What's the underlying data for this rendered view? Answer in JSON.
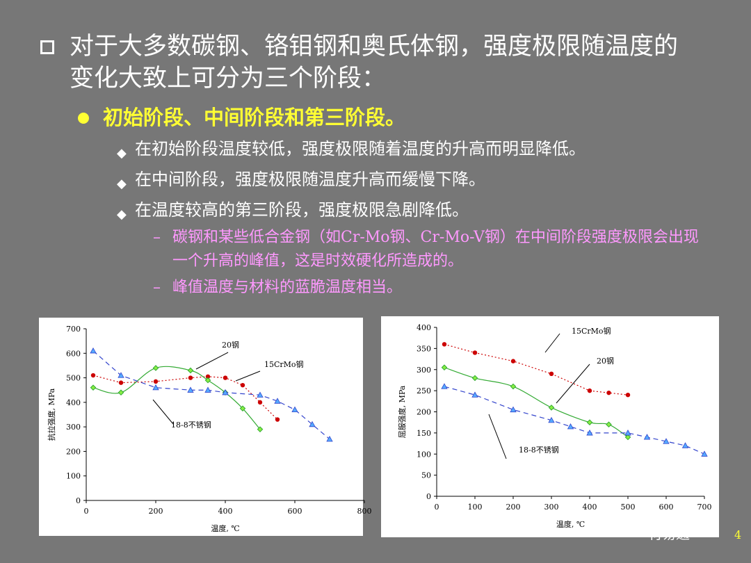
{
  "bullets": {
    "level1": "对于大多数碳钢、铬钼钢和奥氏体钢，强度极限随温度的变化大致上可分为三个阶段：",
    "level2": "初始阶段、中间阶段和第三阶段。",
    "level3": [
      "在初始阶段温度较低，强度极限随着温度的升高而明显降低。",
      "在中间阶段，强度极限随温度升高而缓慢下降。",
      "在温度较高的第三阶段，强度极限急剧降低。"
    ],
    "level4": [
      "碳钢和某些低合金钢（如Cr-Mo钢、Cr-Mo-V钢）在中间阶段强度极限会出现一个升高的峰值，这是时效硬化所造成的。",
      "峰值温度与材料的蓝脆温度相当。"
    ],
    "dash": "–"
  },
  "colors": {
    "c15CrMo": "#cc0000",
    "c20": "#33aa33",
    "c188": "#3344cc",
    "slide_bg": "#777777",
    "title": "#ffffff",
    "sub": "#ffff33",
    "note": "#ff99ff"
  },
  "page_number": "4",
  "watermark": "材易通",
  "chart_data": [
    {
      "type": "line",
      "xlabel": "温度, ℃",
      "ylabel": "抗拉强度, MPa",
      "xlim": [
        0,
        800
      ],
      "ylim": [
        0,
        700
      ],
      "xticks": [
        0,
        200,
        400,
        600,
        800
      ],
      "yticks": [
        0,
        100,
        200,
        300,
        400,
        500,
        600,
        700
      ],
      "series": [
        {
          "name": "15CrMo钢",
          "color": "#cc0000",
          "marker": "circle",
          "dash": "2,3",
          "x": [
            20,
            100,
            200,
            300,
            350,
            400,
            450,
            500,
            550
          ],
          "y": [
            510,
            480,
            485,
            500,
            505,
            500,
            470,
            400,
            330
          ]
        },
        {
          "name": "20钢",
          "color": "#33aa33",
          "marker": "diamond",
          "dash": "",
          "x": [
            20,
            100,
            200,
            300,
            350,
            400,
            450,
            500
          ],
          "y": [
            460,
            440,
            540,
            530,
            490,
            440,
            375,
            290
          ]
        },
        {
          "name": "18-8不锈钢",
          "color": "#3344cc",
          "marker": "triangle",
          "dash": "7,5",
          "x": [
            20,
            100,
            200,
            300,
            350,
            400,
            500,
            550,
            600,
            650,
            700
          ],
          "y": [
            610,
            510,
            460,
            450,
            450,
            440,
            430,
            405,
            370,
            310,
            250
          ]
        }
      ],
      "annotations": [
        {
          "text": "20钢",
          "series": "20钢"
        },
        {
          "text": "15CrMo钢",
          "series": "15CrMo钢"
        },
        {
          "text": "18-8不锈钢",
          "series": "18-8不锈钢"
        }
      ]
    },
    {
      "type": "line",
      "xlabel": "温度, ℃",
      "ylabel": "屈服强度, MPa",
      "xlim": [
        0,
        700
      ],
      "ylim": [
        0,
        400
      ],
      "xticks": [
        0,
        100,
        200,
        300,
        400,
        500,
        600,
        700
      ],
      "yticks": [
        0,
        50,
        100,
        150,
        200,
        250,
        300,
        350,
        400
      ],
      "series": [
        {
          "name": "15CrMo钢",
          "color": "#cc0000",
          "marker": "circle",
          "dash": "2,3",
          "x": [
            20,
            100,
            200,
            300,
            400,
            450,
            500
          ],
          "y": [
            360,
            340,
            320,
            290,
            250,
            245,
            240
          ]
        },
        {
          "name": "20钢",
          "color": "#33aa33",
          "marker": "diamond",
          "dash": "",
          "x": [
            20,
            100,
            200,
            300,
            400,
            450,
            500
          ],
          "y": [
            305,
            280,
            260,
            210,
            175,
            170,
            140
          ]
        },
        {
          "name": "18-8不锈钢",
          "color": "#3344cc",
          "marker": "triangle",
          "dash": "7,5",
          "x": [
            20,
            100,
            200,
            300,
            350,
            400,
            500,
            550,
            600,
            650,
            700
          ],
          "y": [
            260,
            240,
            205,
            180,
            165,
            150,
            150,
            140,
            130,
            120,
            100
          ]
        }
      ],
      "annotations": [
        {
          "text": "15CrMo钢",
          "series": "15CrMo钢"
        },
        {
          "text": "20钢",
          "series": "20钢"
        },
        {
          "text": "18-8不锈钢",
          "series": "18-8不锈钢"
        }
      ]
    }
  ]
}
